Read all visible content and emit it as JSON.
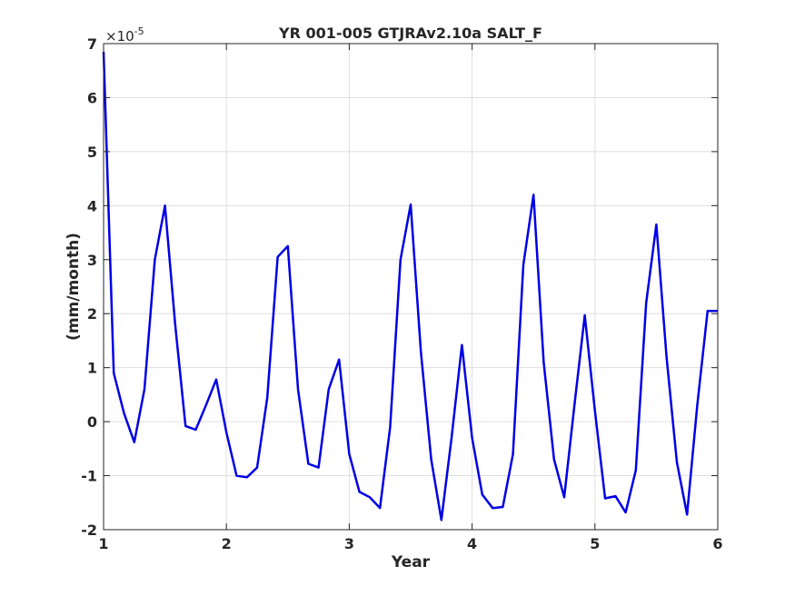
{
  "chart_data": {
    "type": "line",
    "title": "YR 001-005 GTJRAv2.10a SALT_F",
    "xlabel": "Year",
    "ylabel": "(mm/month)",
    "y_multiplier": "×10",
    "y_exponent": "-5",
    "xlim": [
      1,
      6
    ],
    "ylim": [
      -2,
      7
    ],
    "x_ticks": [
      1,
      2,
      3,
      4,
      5,
      6
    ],
    "y_ticks": [
      -2,
      -1,
      0,
      1,
      2,
      3,
      4,
      5,
      6,
      7
    ],
    "grid": true,
    "line_color": "#0000e6",
    "series": [
      {
        "x": [
          1.0,
          1.083,
          1.167,
          1.25,
          1.333,
          1.417,
          1.5,
          1.583,
          1.667,
          1.75,
          1.833,
          1.917,
          2.0,
          2.083,
          2.167,
          2.25,
          2.333,
          2.417,
          2.5,
          2.583,
          2.667,
          2.75,
          2.833,
          2.917,
          3.0,
          3.083,
          3.167,
          3.25,
          3.333,
          3.417,
          3.5,
          3.583,
          3.667,
          3.75,
          3.833,
          3.917,
          4.0,
          4.083,
          4.167,
          4.25,
          4.333,
          4.417,
          4.5,
          4.583,
          4.667,
          4.75,
          4.833,
          4.917,
          5.0,
          5.083,
          5.167,
          5.25,
          5.333,
          5.417,
          5.5,
          5.583,
          5.667,
          5.75,
          5.833,
          5.917,
          6.0
        ],
        "values": [
          6.85,
          0.9,
          0.15,
          -0.38,
          0.6,
          3.0,
          4.0,
          1.8,
          -0.08,
          -0.15,
          0.3,
          0.78,
          -0.2,
          -1.0,
          -1.03,
          -0.85,
          0.45,
          3.05,
          3.25,
          0.6,
          -0.78,
          -0.85,
          0.6,
          1.15,
          -0.6,
          -1.3,
          -1.4,
          -1.6,
          -0.1,
          3.0,
          4.02,
          1.3,
          -0.7,
          -1.82,
          -0.3,
          1.42,
          -0.3,
          -1.35,
          -1.6,
          -1.58,
          -0.6,
          2.9,
          4.2,
          1.1,
          -0.7,
          -1.4,
          0.3,
          1.97,
          0.2,
          -1.42,
          -1.38,
          -1.68,
          -0.9,
          2.2,
          3.65,
          1.2,
          -0.75,
          -1.72,
          0.3,
          2.05,
          2.05
        ]
      }
    ]
  }
}
